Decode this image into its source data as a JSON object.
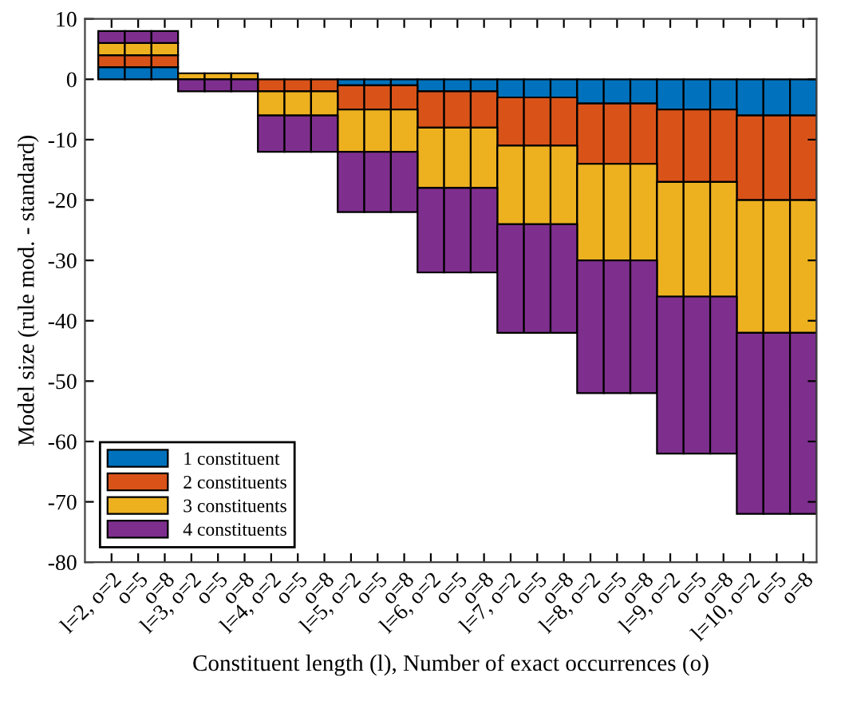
{
  "chart_data": {
    "type": "bar",
    "stacked": true,
    "xlabel": "Constituent length (l), Number of exact occurrences (o)",
    "ylabel": "Model size (rule mod. - standard)",
    "categories": [
      "l=2, o=2",
      "o=5",
      "o=8",
      "l=3, o=2",
      "o=5",
      "o=8",
      "l=4, o=2",
      "o=5",
      "o=8",
      "l=5, o=2",
      "o=5",
      "o=8",
      "l=6, o=2",
      "o=5",
      "o=8",
      "l=7, o=2",
      "o=5",
      "o=8",
      "l=8, o=2",
      "o=5",
      "o=8",
      "l=9, o=2",
      "o=5",
      "o=8",
      "l=10, o=2",
      "o=5",
      "o=8"
    ],
    "series": [
      {
        "name": "1 constituent",
        "color": "#0072bd",
        "values": [
          2,
          2,
          2,
          0,
          0,
          0,
          0,
          0,
          0,
          -1,
          -1,
          -1,
          -2,
          -2,
          -2,
          -3,
          -3,
          -3,
          -4,
          -4,
          -4,
          -5,
          -5,
          -5,
          -6,
          -6,
          -6
        ]
      },
      {
        "name": "2 constituents",
        "color": "#d95319",
        "values": [
          2,
          2,
          2,
          0,
          0,
          0,
          -2,
          -2,
          -2,
          -4,
          -4,
          -4,
          -6,
          -6,
          -6,
          -8,
          -8,
          -8,
          -10,
          -10,
          -10,
          -12,
          -12,
          -12,
          -14,
          -14,
          -14
        ]
      },
      {
        "name": "3 constituents",
        "color": "#edb120",
        "values": [
          2,
          2,
          2,
          1,
          1,
          1,
          -4,
          -4,
          -4,
          -7,
          -7,
          -7,
          -10,
          -10,
          -10,
          -13,
          -13,
          -13,
          -16,
          -16,
          -16,
          -19,
          -19,
          -19,
          -22,
          -22,
          -22
        ]
      },
      {
        "name": "4 constituents",
        "color": "#7e2f8e",
        "values": [
          2,
          2,
          2,
          -2,
          -2,
          -2,
          -6,
          -6,
          -6,
          -10,
          -10,
          -10,
          -14,
          -14,
          -14,
          -18,
          -18,
          -18,
          -22,
          -22,
          -22,
          -26,
          -26,
          -26,
          -30,
          -30,
          -30
        ]
      }
    ],
    "ylim": [
      -80,
      10
    ],
    "yticks": [
      -80,
      -70,
      -60,
      -50,
      -40,
      -30,
      -20,
      -10,
      0,
      10
    ],
    "grid": false,
    "legend": "bottom left"
  }
}
